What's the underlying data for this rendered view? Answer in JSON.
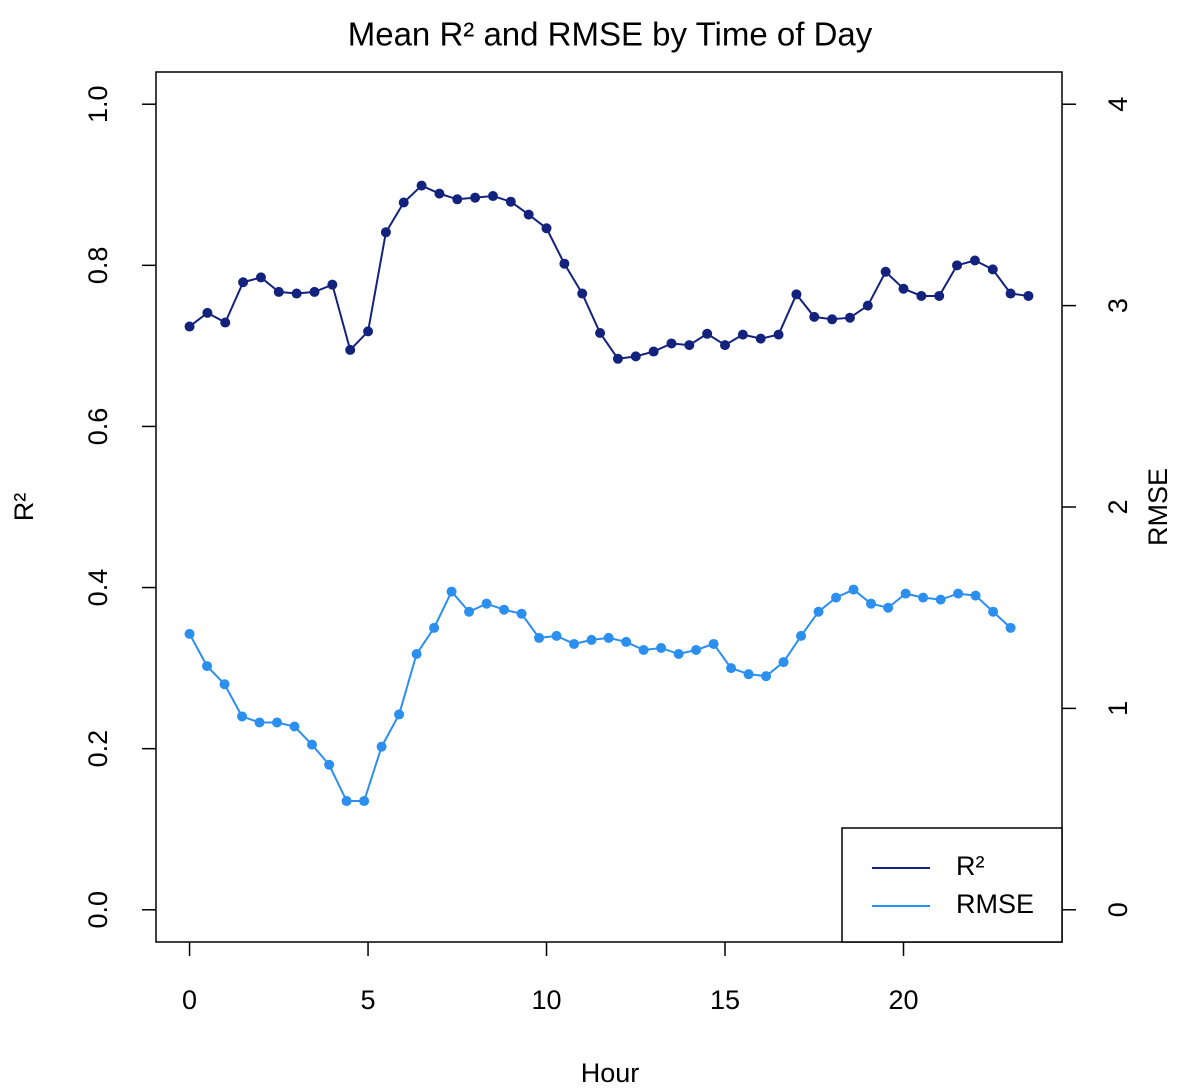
{
  "chart_data": {
    "type": "line",
    "title": "Mean R² and RMSE by Time of Day",
    "x_label": "Hour",
    "y_label": "R²",
    "y2_label": "RMSE",
    "xlim": [
      -0.94,
      24.44
    ],
    "xticks": [
      0,
      5,
      10,
      15,
      20
    ],
    "ylim": [
      -0.04,
      1.04
    ],
    "yticks": [
      {
        "value": 0,
        "label": "0.0"
      },
      0.2,
      0.4,
      0.6,
      0.8,
      {
        "value": 1,
        "label": "1.0"
      }
    ],
    "y2lim": [
      -0.16,
      4.16
    ],
    "y2ticks": [
      0,
      1,
      2,
      3,
      4
    ],
    "legend": "bottom-right",
    "series": [
      {
        "name": "R²",
        "color": "#13237d",
        "x": [
          0,
          0.5,
          1,
          1.5,
          2,
          2.5,
          3,
          3.5,
          4,
          4.5,
          5,
          5.5,
          6,
          6.5,
          7,
          7.5,
          8,
          8.5,
          9,
          9.5,
          10,
          10.5,
          11,
          11.5,
          12,
          12.5,
          13,
          13.5,
          14,
          14.5,
          15,
          15.5,
          16,
          16.5,
          17,
          17.5,
          18,
          18.5,
          19,
          19.5,
          20,
          20.5,
          21,
          21.5,
          22,
          22.5,
          23,
          23.5
        ],
        "values": [
          0.724,
          0.741,
          0.729,
          0.779,
          0.785,
          0.767,
          0.765,
          0.767,
          0.776,
          0.695,
          0.718,
          0.841,
          0.878,
          0.899,
          0.889,
          0.882,
          0.884,
          0.886,
          0.879,
          0.863,
          0.846,
          0.802,
          0.765,
          0.716,
          0.684,
          0.687,
          0.693,
          0.703,
          0.701,
          0.715,
          0.701,
          0.714,
          0.709,
          0.714,
          0.764,
          0.736,
          0.733,
          0.735,
          0.75,
          0.792,
          0.771,
          0.762,
          0.762,
          0.8,
          0.806,
          0.795,
          0.765,
          0.762
        ]
      },
      {
        "name": "RMSE",
        "color": "#2b8ff0",
        "axis": "y2",
        "x": [
          0,
          0.49,
          0.98,
          1.47,
          1.96,
          2.45,
          2.94,
          3.43,
          3.91,
          4.4,
          4.89,
          5.38,
          5.87,
          6.36,
          6.85,
          7.34,
          7.83,
          8.32,
          8.81,
          9.3,
          9.79,
          10.28,
          10.77,
          11.26,
          11.74,
          12.23,
          12.72,
          13.21,
          13.7,
          14.19,
          14.68,
          15.17,
          15.66,
          16.15,
          16.64,
          17.13,
          17.62,
          18.11,
          18.6,
          19.09,
          19.57,
          20.06,
          20.55,
          21.04,
          21.53,
          22.02,
          22.51,
          23
        ],
        "values": [
          1.37,
          1.21,
          1.12,
          0.96,
          0.93,
          0.93,
          0.91,
          0.82,
          0.72,
          0.54,
          0.54,
          0.81,
          0.97,
          1.27,
          1.4,
          1.58,
          1.48,
          1.52,
          1.49,
          1.47,
          1.35,
          1.36,
          1.32,
          1.34,
          1.35,
          1.33,
          1.29,
          1.3,
          1.27,
          1.29,
          1.32,
          1.2,
          1.17,
          1.16,
          1.23,
          1.36,
          1.48,
          1.55,
          1.59,
          1.52,
          1.5,
          1.57,
          1.55,
          1.54,
          1.57,
          1.56,
          1.48,
          1.4
        ]
      }
    ]
  }
}
